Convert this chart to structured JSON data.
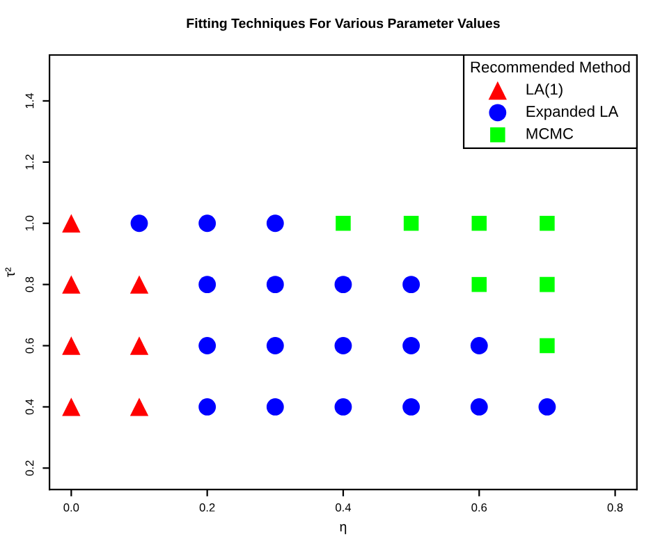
{
  "chart_data": {
    "type": "scatter",
    "title": "Fitting Techniques For Various Parameter Values",
    "xlabel": "η",
    "ylabel": "τ²",
    "legend_title": "Recommended Method",
    "series": [
      {
        "name": "LA(1)",
        "color": "#ff0000",
        "marker": "triangle",
        "x": [
          0.0,
          0.0,
          0.0,
          0.0,
          0.1,
          0.1,
          0.1
        ],
        "values": [
          0.4,
          0.6,
          0.8,
          1.0,
          0.4,
          0.6,
          0.8
        ]
      },
      {
        "name": "Expanded LA",
        "color": "#0000ff",
        "marker": "circle",
        "x": [
          0.1,
          0.2,
          0.2,
          0.2,
          0.2,
          0.3,
          0.3,
          0.3,
          0.3,
          0.4,
          0.4,
          0.4,
          0.5,
          0.5,
          0.5,
          0.6,
          0.6,
          0.7
        ],
        "values": [
          1.0,
          0.4,
          0.6,
          0.8,
          1.0,
          0.4,
          0.6,
          0.8,
          1.0,
          0.4,
          0.6,
          0.8,
          0.4,
          0.6,
          0.8,
          0.4,
          0.6,
          0.4
        ]
      },
      {
        "name": "MCMC",
        "color": "#00ff00",
        "marker": "square",
        "x": [
          0.4,
          0.5,
          0.6,
          0.6,
          0.7,
          0.7,
          0.7
        ],
        "values": [
          1.0,
          1.0,
          0.8,
          1.0,
          0.6,
          0.8,
          1.0
        ]
      }
    ],
    "xlim": [
      -0.032,
      0.832
    ],
    "ylim": [
      0.13,
      1.55
    ],
    "xticks": [
      {
        "value": 0.0,
        "label": "0.0"
      },
      0.2,
      0.4,
      0.6,
      0.8
    ],
    "yticks": [
      0.2,
      0.4,
      0.6,
      0.8,
      {
        "value": 1.0,
        "label": "1.0"
      },
      1.2,
      1.4
    ],
    "grid": false,
    "legend": "top right"
  }
}
